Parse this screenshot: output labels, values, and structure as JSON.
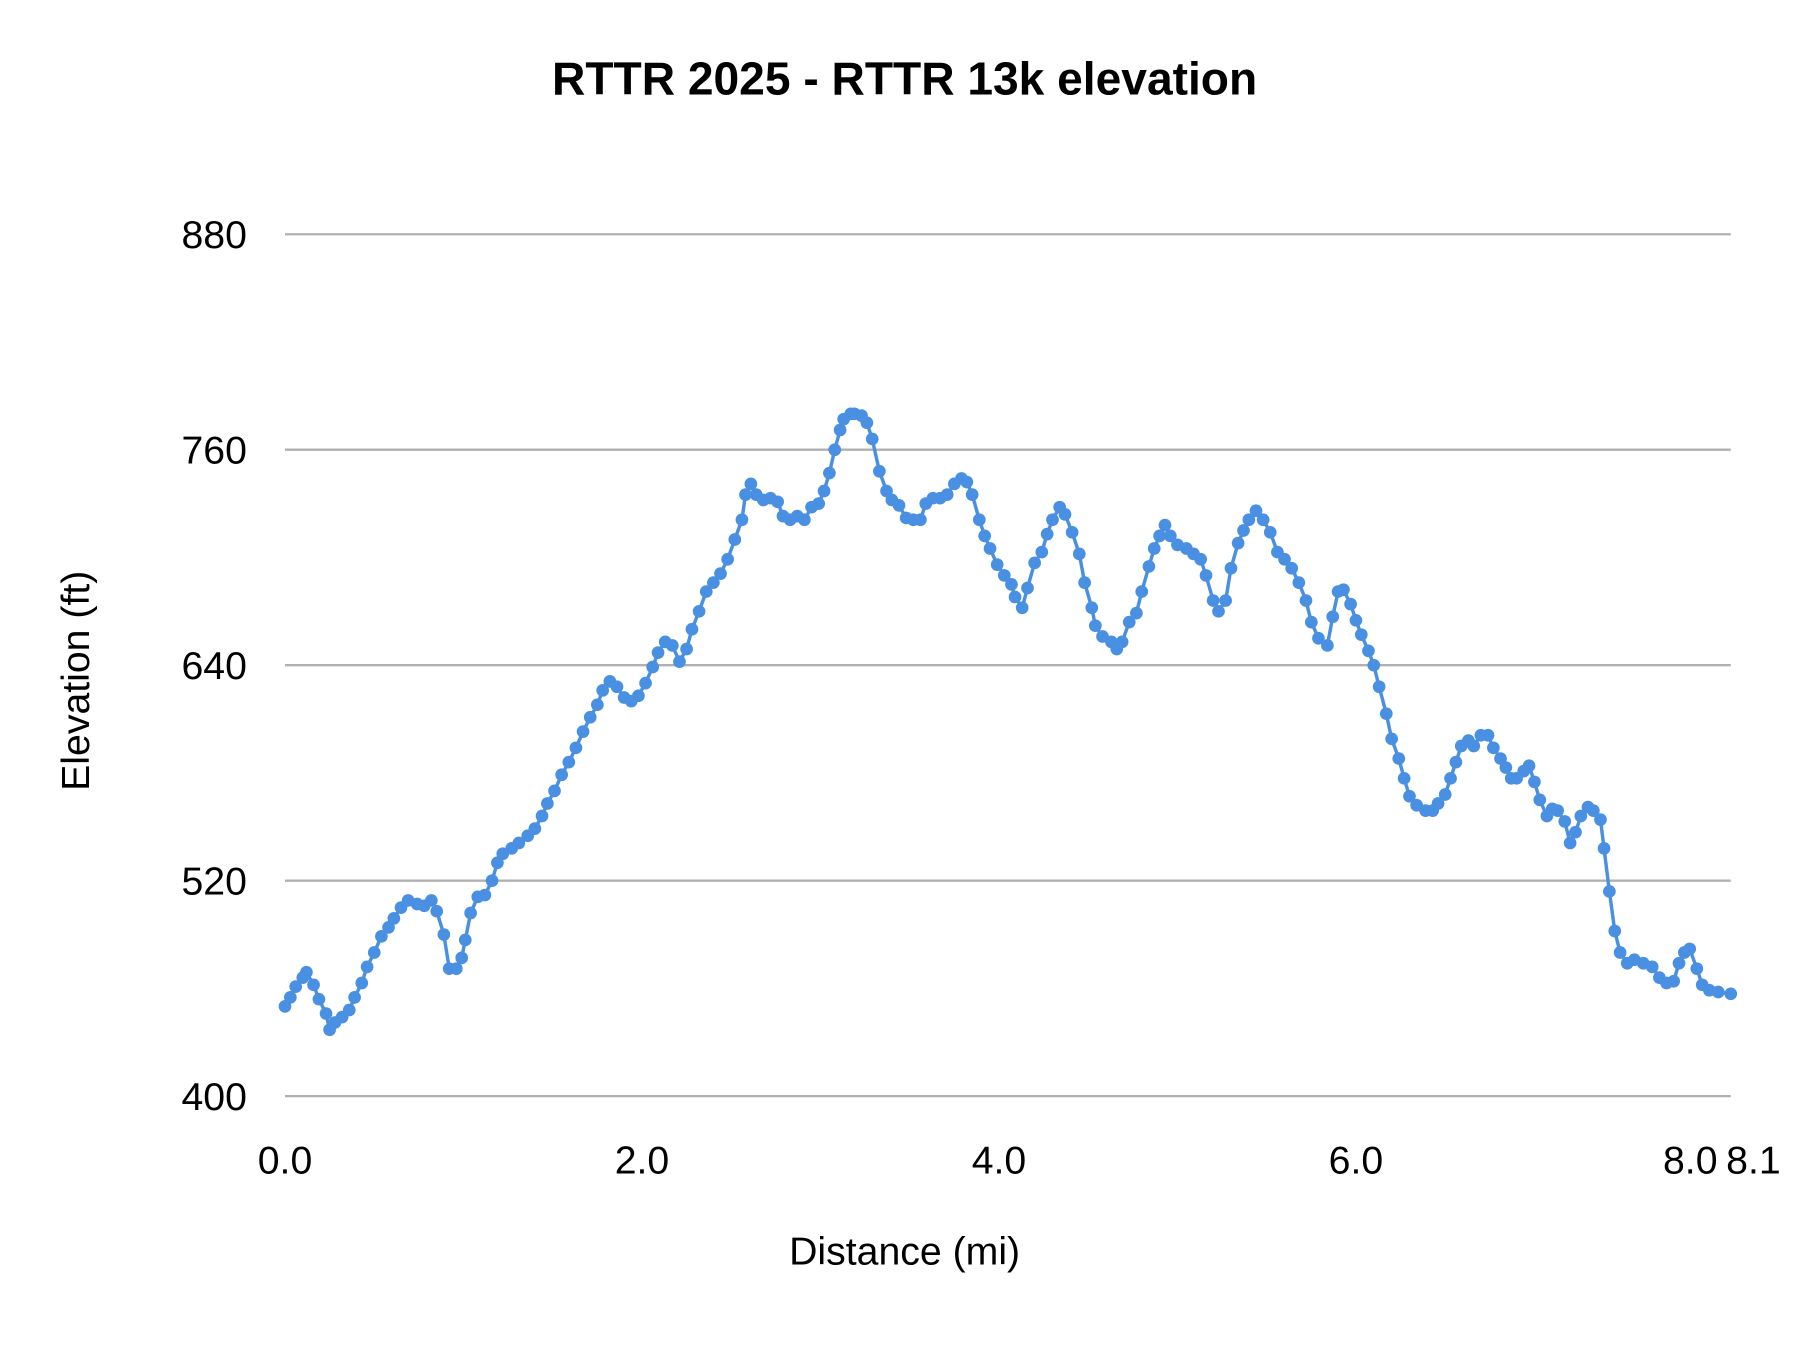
{
  "chart_data": {
    "type": "line",
    "title": "RTTR 2025 - RTTR 13k elevation",
    "xlabel": "Distance (mi)",
    "ylabel": "Elevation (ft)",
    "xlim": [
      0,
      8.1
    ],
    "ylim": [
      400,
      880
    ],
    "x_ticks": [
      "0.0",
      "2.0",
      "4.0",
      "6.0",
      "8.0",
      "8.1"
    ],
    "x_tick_values": [
      0,
      2,
      4,
      6,
      8,
      8.1
    ],
    "y_ticks": [
      "400",
      "520",
      "640",
      "760",
      "880"
    ],
    "y_tick_values": [
      400,
      520,
      640,
      760,
      880
    ],
    "grid": true,
    "legend": "none",
    "color": "#4a90e2",
    "markers": true,
    "series": [
      {
        "x": [
          0,
          0.03,
          0.06,
          0.1,
          0.12,
          0.16,
          0.19,
          0.23,
          0.25,
          0.28,
          0.32,
          0.36,
          0.39,
          0.43,
          0.46,
          0.5,
          0.54,
          0.58,
          0.61,
          0.65,
          0.69,
          0.74,
          0.78,
          0.82,
          0.85,
          0.89,
          0.92,
          0.96,
          0.99,
          1.01,
          1.04,
          1.08,
          1.12,
          1.16,
          1.19,
          1.22,
          1.27,
          1.31,
          1.36,
          1.4,
          1.44,
          1.47,
          1.51,
          1.55,
          1.59,
          1.63,
          1.67,
          1.71,
          1.75,
          1.78,
          1.82,
          1.86,
          1.9,
          1.94,
          1.98,
          2.02,
          2.06,
          2.09,
          2.13,
          2.17,
          2.21,
          2.25,
          2.28,
          2.32,
          2.36,
          2.4,
          2.44,
          2.48,
          2.52,
          2.56,
          2.58,
          2.61,
          2.64,
          2.68,
          2.72,
          2.76,
          2.79,
          2.83,
          2.87,
          2.91,
          2.95,
          2.99,
          3.02,
          3.05,
          3.08,
          3.11,
          3.13,
          3.17,
          3.19,
          3.23,
          3.26,
          3.29,
          3.33,
          3.37,
          3.4,
          3.44,
          3.48,
          3.52,
          3.56,
          3.59,
          3.63,
          3.67,
          3.71,
          3.75,
          3.79,
          3.82,
          3.85,
          3.89,
          3.92,
          3.95,
          3.99,
          4.03,
          4.07,
          4.09,
          4.13,
          4.16,
          4.2,
          4.24,
          4.27,
          4.3,
          4.34,
          4.37,
          4.41,
          4.45,
          4.48,
          4.52,
          4.54,
          4.58,
          4.63,
          4.66,
          4.69,
          4.73,
          4.77,
          4.8,
          4.84,
          4.87,
          4.9,
          4.93,
          4.96,
          5.0,
          5.05,
          5.09,
          5.13,
          5.16,
          5.2,
          5.23,
          5.27,
          5.3,
          5.34,
          5.37,
          5.4,
          5.44,
          5.48,
          5.52,
          5.56,
          5.6,
          5.64,
          5.68,
          5.72,
          5.75,
          5.79,
          5.84,
          5.87,
          5.9,
          5.93,
          5.97,
          6.0,
          6.03,
          6.07,
          6.1,
          6.13,
          6.17,
          6.2,
          6.24,
          6.27,
          6.3,
          6.34,
          6.39,
          6.43,
          6.46,
          6.5,
          6.53,
          6.56,
          6.59,
          6.63,
          6.66,
          6.7,
          6.74,
          6.77,
          6.81,
          6.84,
          6.87,
          6.9,
          6.94,
          6.97,
          7.0,
          7.03,
          7.07,
          7.1,
          7.13,
          7.17,
          7.2,
          7.23,
          7.26,
          7.3,
          7.33,
          7.37,
          7.39,
          7.42,
          7.45,
          7.48,
          7.52,
          7.56,
          7.61,
          7.66,
          7.7,
          7.74,
          7.78,
          7.81,
          7.84,
          7.87,
          7.91,
          7.94,
          7.98,
          8.03,
          8.1
        ],
        "y": [
          450,
          455,
          461,
          466,
          469,
          462,
          454,
          446,
          437,
          441,
          444,
          448,
          455,
          463,
          472,
          480,
          489,
          494,
          499,
          505,
          509,
          507,
          506,
          509,
          503,
          490,
          471,
          471,
          477,
          487,
          502,
          511,
          512,
          520,
          530,
          535,
          538,
          541,
          545,
          549,
          556,
          563,
          570,
          579,
          586,
          594,
          603,
          611,
          618,
          626,
          631,
          628,
          622,
          620,
          623,
          630,
          639,
          647,
          653,
          651,
          642,
          649,
          660,
          670,
          681,
          686,
          691,
          699,
          710,
          721,
          735,
          741,
          735,
          732,
          733,
          731,
          723,
          721,
          723,
          721,
          728,
          730,
          737,
          747,
          760,
          771,
          777,
          780,
          780,
          779,
          775,
          766,
          748,
          737,
          732,
          729,
          722,
          721,
          721,
          730,
          733,
          733,
          735,
          741,
          744,
          742,
          735,
          721,
          712,
          705,
          696,
          690,
          685,
          678,
          672,
          683,
          697,
          703,
          713,
          721,
          728,
          724,
          714,
          702,
          686,
          672,
          662,
          656,
          653,
          649,
          653,
          664,
          669,
          681,
          695,
          705,
          712,
          718,
          712,
          707,
          705,
          702,
          699,
          690,
          676,
          670,
          676,
          694,
          708,
          715,
          721,
          726,
          721,
          714,
          703,
          699,
          694,
          686,
          676,
          664,
          655,
          651,
          667,
          681,
          682,
          674,
          665,
          657,
          648,
          640,
          628,
          613,
          599,
          588,
          577,
          567,
          562,
          559,
          559,
          563,
          568,
          577,
          586,
          595,
          598,
          595,
          601,
          601,
          594,
          588,
          583,
          577,
          577,
          581,
          584,
          575,
          565,
          556,
          560,
          559,
          553,
          541,
          547,
          556,
          561,
          559,
          554,
          538,
          514,
          492,
          480,
          474,
          476,
          474,
          472,
          466,
          463,
          464,
          474,
          480,
          482,
          471,
          462,
          459,
          458,
          457
        ]
      }
    ]
  }
}
